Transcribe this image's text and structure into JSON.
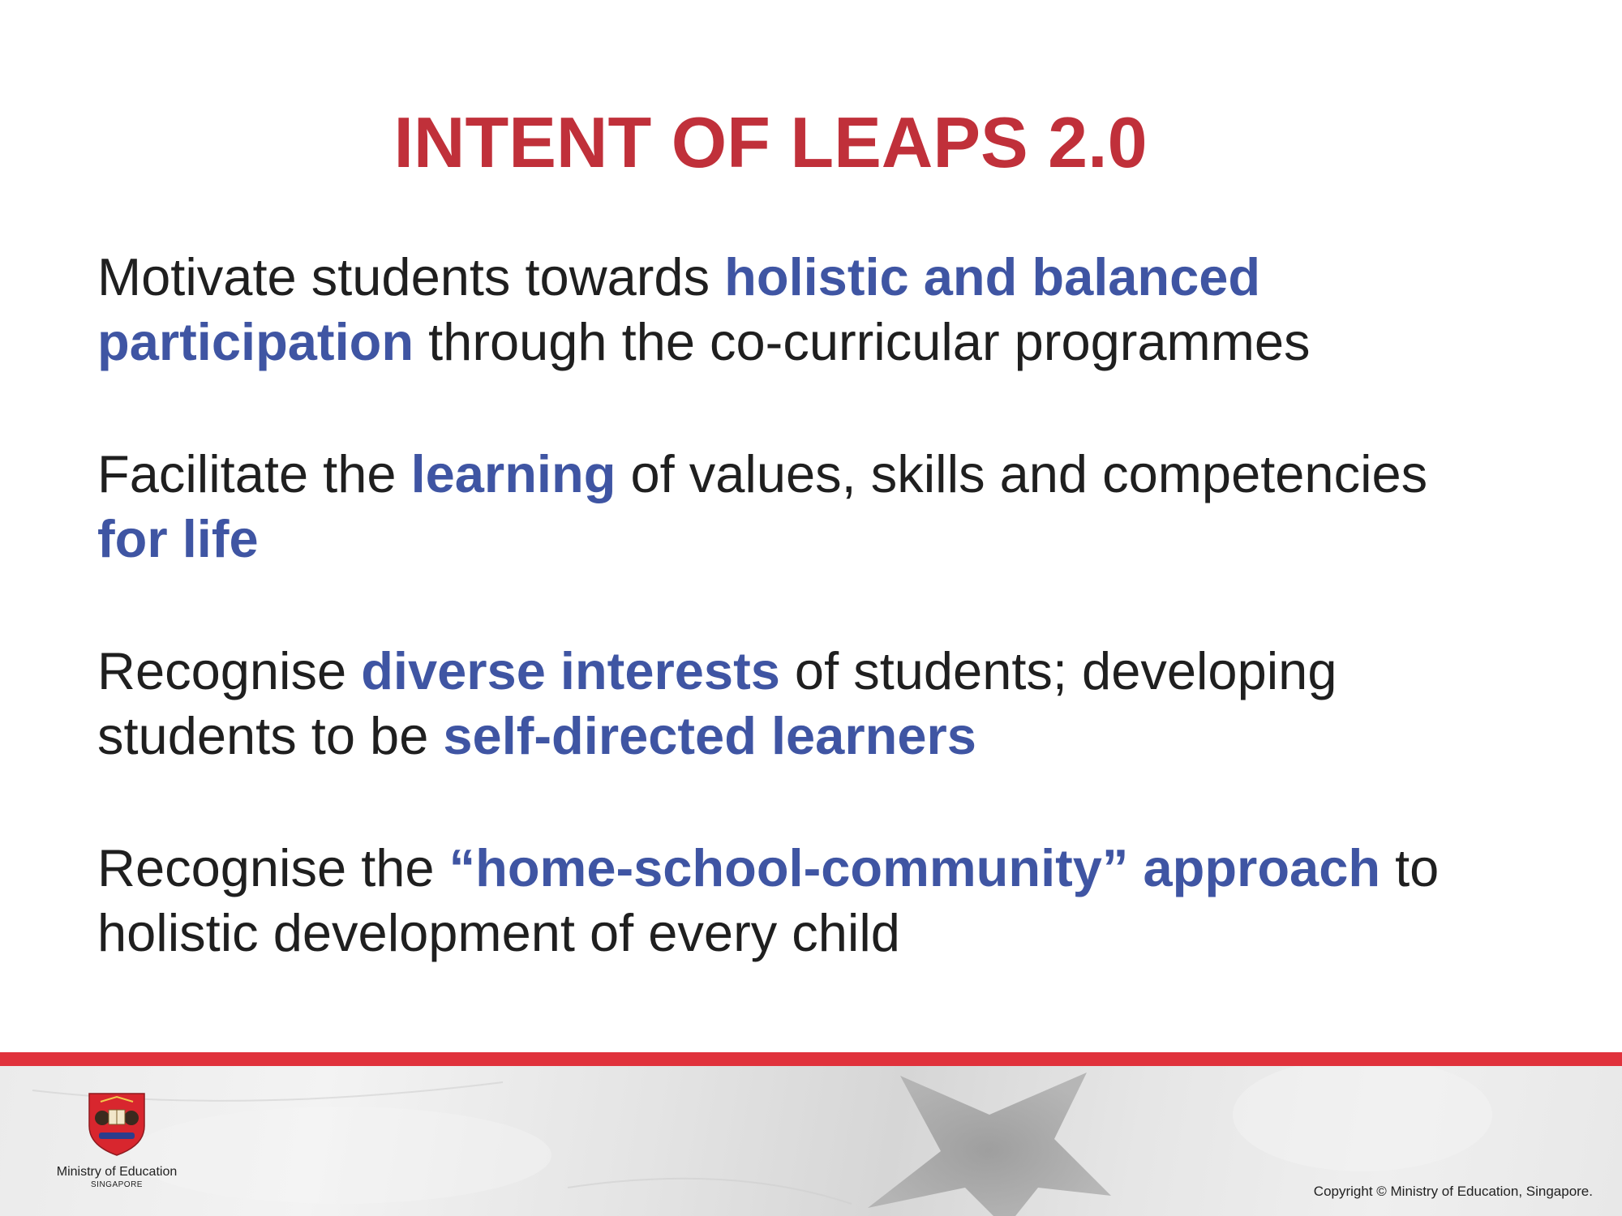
{
  "slide": {
    "title": "INTENT OF LEAPS 2.0",
    "points": [
      {
        "parts": [
          {
            "text": "Motivate students towards ",
            "highlight": false
          },
          {
            "text": "holistic and balanced participation",
            "highlight": true
          },
          {
            "text": " through the co-curricular programmes",
            "highlight": false
          }
        ]
      },
      {
        "parts": [
          {
            "text": "Facilitate the ",
            "highlight": false
          },
          {
            "text": "learning",
            "highlight": true
          },
          {
            "text": " of values, skills and competencies ",
            "highlight": false
          },
          {
            "text": "for life",
            "highlight": true
          }
        ]
      },
      {
        "parts": [
          {
            "text": "Recognise ",
            "highlight": false
          },
          {
            "text": "diverse interests",
            "highlight": true
          },
          {
            "text": " of students; developing students to be ",
            "highlight": false
          },
          {
            "text": "self-directed learners",
            "highlight": true
          }
        ]
      },
      {
        "parts": [
          {
            "text": "Recognise the ",
            "highlight": false
          },
          {
            "text": "“home-school-community” approach",
            "highlight": true
          },
          {
            "text": " to holistic development of every child",
            "highlight": false
          }
        ]
      }
    ]
  },
  "footer": {
    "ministry_name": "Ministry of Education",
    "country": "SINGAPORE",
    "crest_icon": "moe-crest-icon",
    "copyright": "Copyright © Ministry of Education, Singapore."
  },
  "colors": {
    "title": "#c0303a",
    "highlight": "#3f55a3",
    "body_text": "#1f1f1f",
    "band": "#e0323c"
  }
}
